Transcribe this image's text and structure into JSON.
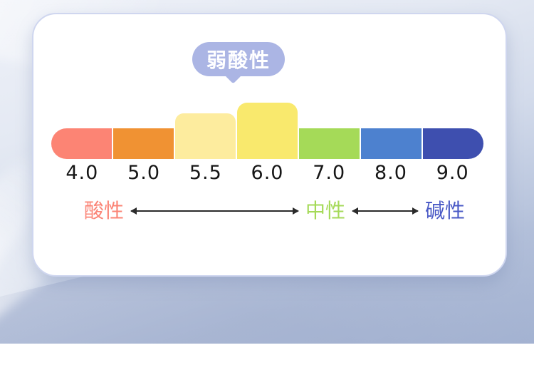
{
  "chart_data": {
    "type": "bar",
    "title": "",
    "categories": [
      "4.0",
      "5.0",
      "5.5",
      "6.0",
      "7.0",
      "8.0",
      "9.0"
    ],
    "values": [
      43,
      43,
      64,
      79,
      43,
      43,
      43
    ],
    "values_note": "bar segment heights in px; raised bars mark the highlighted weakly-acidic range 5.5-6.0",
    "segment_colors": [
      "#FC8474",
      "#F09233",
      "#FDEC9E",
      "#F9E96D",
      "#A5DA58",
      "#4D81CF",
      "#3E4FAF"
    ],
    "annotation": {
      "label": "弱酸性",
      "points_between": [
        "5.5",
        "6.0"
      ],
      "bubble_color": "#ABB5E4",
      "text_color": "#FFFFFF"
    },
    "axis_labels": [
      {
        "label": "酸性",
        "color": "#FB8476"
      },
      {
        "label": "中性",
        "color": "#A5DA58"
      },
      {
        "label": "碱性",
        "color": "#4A5AC6"
      }
    ],
    "tick_color": "#161616",
    "layout": {
      "legend": "none",
      "grid": false,
      "orientation": "horizontal-scale"
    }
  },
  "card": {
    "background": "#FFFFFF"
  }
}
